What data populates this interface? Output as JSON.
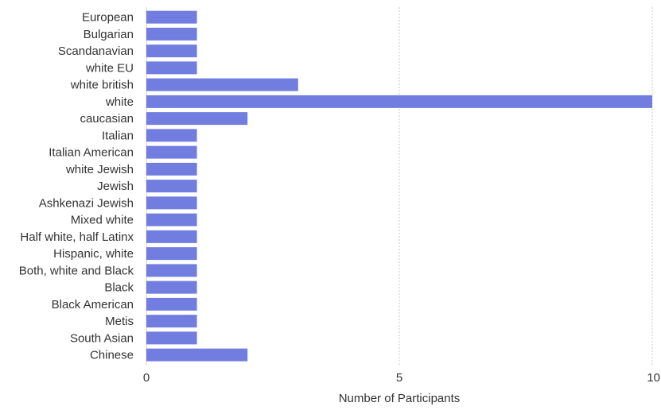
{
  "chart_data": {
    "type": "bar",
    "orientation": "horizontal",
    "title": "",
    "xlabel": "Number of Participants",
    "ylabel": "",
    "xlim": [
      0,
      10
    ],
    "xticks": [
      0,
      5,
      10
    ],
    "grid": true,
    "bar_color": "#717ee0",
    "categories": [
      "European",
      "Bulgarian",
      "Scandanavian",
      "white EU",
      "white british",
      "white",
      "caucasian",
      "Italian",
      "Italian American",
      "white Jewish",
      "Jewish",
      "Ashkenazi Jewish",
      "Mixed white",
      "Half white, half Latinx",
      "Hispanic, white",
      "Both, white and Black",
      "Black",
      "Black American",
      "Metis",
      "South Asian",
      "Chinese"
    ],
    "values": [
      1,
      1,
      1,
      1,
      3,
      10,
      2,
      1,
      1,
      1,
      1,
      1,
      1,
      1,
      1,
      1,
      1,
      1,
      1,
      1,
      2
    ]
  }
}
